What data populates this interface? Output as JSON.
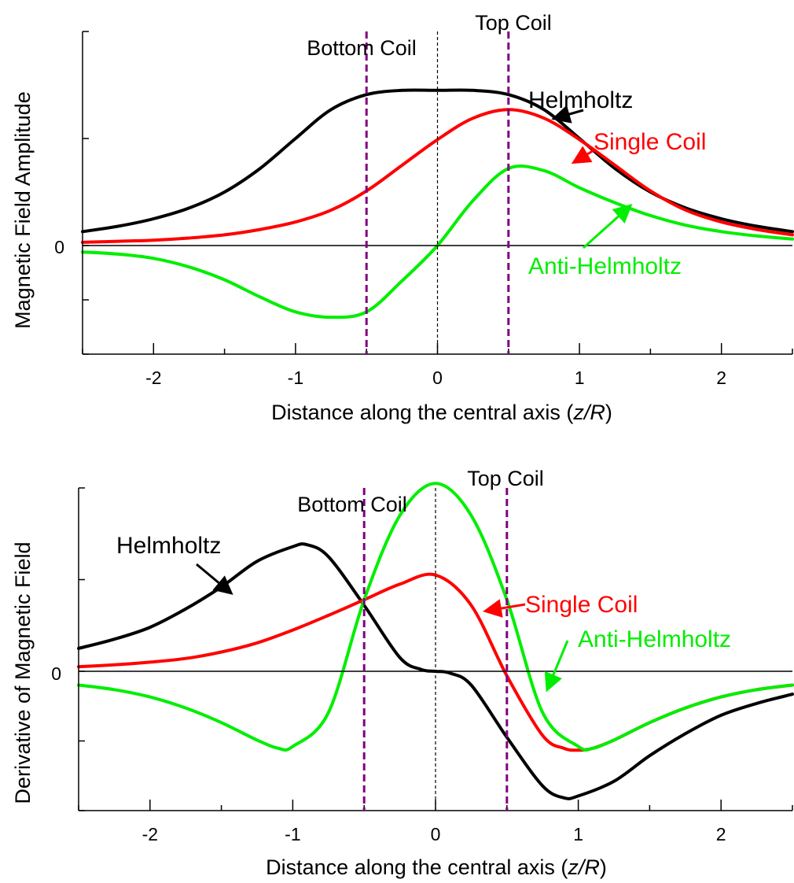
{
  "chart_data": [
    {
      "type": "line",
      "title": "",
      "xlabel_main": "Distance along the central axis (",
      "xlabel_var": "z/R",
      "xlabel_close": ")",
      "ylabel": "Magnetic Field Amplitude",
      "xlim": [
        -2.5,
        2.5
      ],
      "ylim": [
        -1,
        2
      ],
      "xticks": [
        -2,
        -1,
        0,
        1,
        2
      ],
      "yticks": [
        0
      ],
      "coil_positions": [
        -0.5,
        0.5
      ],
      "coil_labels": {
        "bottom": "Bottom Coil",
        "top": "Top Coil"
      },
      "series": [
        {
          "name": "Helmholtz",
          "color": "#000000",
          "x": [
            -2.5,
            -2.25,
            -2,
            -1.75,
            -1.5,
            -1.25,
            -1,
            -0.75,
            -0.5,
            -0.25,
            0,
            0.25,
            0.5,
            0.75,
            1,
            1.25,
            1.5,
            1.75,
            2,
            2.25,
            2.5
          ],
          "y": [
            0.13,
            0.18,
            0.25,
            0.35,
            0.5,
            0.72,
            1.0,
            1.27,
            1.41,
            1.45,
            1.45,
            1.45,
            1.41,
            1.27,
            1.0,
            0.72,
            0.5,
            0.35,
            0.25,
            0.18,
            0.13
          ]
        },
        {
          "name": "Single Coil",
          "color": "#ff0000",
          "x": [
            -2.5,
            -2.25,
            -2,
            -1.75,
            -1.5,
            -1.25,
            -1,
            -0.75,
            -0.5,
            -0.25,
            0,
            0.25,
            0.5,
            0.75,
            1,
            1.25,
            1.5,
            1.75,
            2,
            2.25,
            2.5
          ],
          "y": [
            0.03,
            0.04,
            0.05,
            0.07,
            0.1,
            0.15,
            0.22,
            0.33,
            0.51,
            0.75,
            0.99,
            1.19,
            1.27,
            1.19,
            0.99,
            0.75,
            0.51,
            0.33,
            0.22,
            0.15,
            0.1
          ]
        },
        {
          "name": "Anti-Helmholtz",
          "color": "#00ee00",
          "x": [
            -2.5,
            -2.25,
            -2,
            -1.75,
            -1.5,
            -1.25,
            -1,
            -0.75,
            -0.5,
            -0.25,
            0,
            0.25,
            0.5,
            0.75,
            1,
            1.25,
            1.5,
            1.75,
            2,
            2.25,
            2.5
          ],
          "y": [
            -0.06,
            -0.08,
            -0.12,
            -0.2,
            -0.32,
            -0.48,
            -0.62,
            -0.67,
            -0.62,
            -0.33,
            0,
            0.42,
            0.72,
            0.7,
            0.54,
            0.4,
            0.28,
            0.19,
            0.13,
            0.09,
            0.06
          ]
        }
      ],
      "annotations": [
        {
          "text": "Helmholtz",
          "color": "#000000"
        },
        {
          "text": "Single Coil",
          "color": "#ff0000"
        },
        {
          "text": "Anti-Helmholtz",
          "color": "#00ee00"
        }
      ]
    },
    {
      "type": "line",
      "title": "",
      "xlabel_main": "Distance along the central axis (",
      "xlabel_var": "z/R",
      "xlabel_close": ")",
      "ylabel": "Derivative of Magnetic Field",
      "xlim": [
        -2.5,
        2.5
      ],
      "ylim": [
        -1.5,
        2.0
      ],
      "xticks": [
        -2,
        -1,
        0,
        1,
        2
      ],
      "yticks": [
        0
      ],
      "coil_positions": [
        -0.5,
        0.5
      ],
      "coil_labels": {
        "bottom": "Bottom Coil",
        "top": "Top Coil"
      },
      "series": [
        {
          "name": "Helmholtz",
          "color": "#000000",
          "x": [
            -2.5,
            -2.25,
            -2,
            -1.75,
            -1.5,
            -1.25,
            -1,
            -0.9,
            -0.75,
            -0.5,
            -0.25,
            -0.1,
            0,
            0.1,
            0.25,
            0.5,
            0.75,
            0.9,
            1,
            1.25,
            1.5,
            1.75,
            2,
            2.25,
            2.5
          ],
          "y": [
            0.25,
            0.35,
            0.48,
            0.68,
            0.92,
            1.2,
            1.36,
            1.38,
            1.25,
            0.72,
            0.15,
            0.02,
            0,
            -0.02,
            -0.15,
            -0.72,
            -1.25,
            -1.38,
            -1.36,
            -1.2,
            -0.92,
            -0.68,
            -0.48,
            -0.35,
            -0.25
          ]
        },
        {
          "name": "Single Coil",
          "color": "#ff0000",
          "x": [
            -2.5,
            -2.25,
            -2,
            -1.75,
            -1.5,
            -1.25,
            -1,
            -0.75,
            -0.5,
            -0.25,
            0,
            0.25,
            0.5,
            0.75,
            0.9,
            1,
            1.1,
            1.25,
            1.5,
            1.75,
            2,
            2.25,
            2.5
          ],
          "y": [
            0.05,
            0.07,
            0.1,
            0.14,
            0.21,
            0.31,
            0.45,
            0.61,
            0.78,
            0.95,
            1.05,
            0.72,
            -0.05,
            -0.7,
            -0.84,
            -0.86,
            -0.84,
            -0.75,
            -0.56,
            -0.4,
            -0.28,
            -0.2,
            -0.15
          ]
        },
        {
          "name": "Anti-Helmholtz",
          "color": "#00ee00",
          "x": [
            -2.5,
            -2.25,
            -2,
            -1.75,
            -1.5,
            -1.25,
            -1.1,
            -1,
            -0.75,
            -0.5,
            -0.25,
            0,
            0.25,
            0.5,
            0.75,
            1,
            1.1,
            1.25,
            1.5,
            1.75,
            2,
            2.25,
            2.5
          ],
          "y": [
            -0.15,
            -0.2,
            -0.28,
            -0.4,
            -0.56,
            -0.75,
            -0.84,
            -0.82,
            -0.45,
            0.78,
            1.7,
            2.05,
            1.7,
            0.78,
            -0.45,
            -0.82,
            -0.84,
            -0.75,
            -0.56,
            -0.4,
            -0.28,
            -0.2,
            -0.15
          ]
        }
      ],
      "annotations": [
        {
          "text": "Helmholtz",
          "color": "#000000"
        },
        {
          "text": "Single Coil",
          "color": "#ff0000"
        },
        {
          "text": "Anti-Helmholtz",
          "color": "#00ee00"
        }
      ]
    }
  ]
}
